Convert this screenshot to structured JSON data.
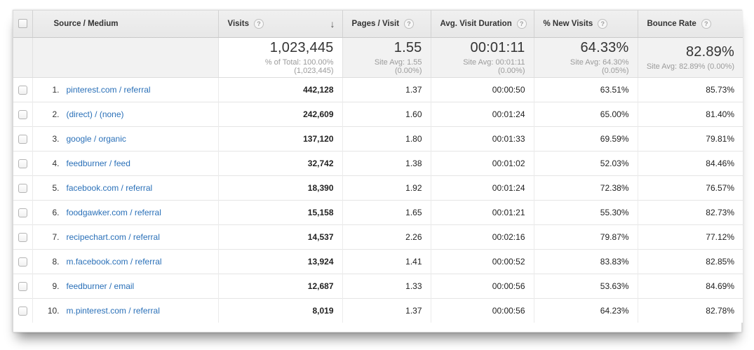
{
  "colors": {
    "link_blue": "#2a70b8",
    "header_bg": "#e9e9e9",
    "summary_bg": "#f2f2f2"
  },
  "columns": {
    "source_medium": "Source / Medium",
    "visits": "Visits",
    "pages_visit": "Pages / Visit",
    "avg_duration": "Avg. Visit Duration",
    "new_visits": "% New Visits",
    "bounce_rate": "Bounce Rate",
    "help_icon": "?",
    "sort_arrow": "↓"
  },
  "summary": {
    "visits": "1,023,445",
    "visits_note": "% of Total: 100.00% (1,023,445)",
    "pages_visit": "1.55",
    "pages_visit_note": "Site Avg: 1.55 (0.00%)",
    "avg_duration": "00:01:11",
    "avg_duration_note": "Site Avg: 00:01:11 (0.00%)",
    "new_visits": "64.33%",
    "new_visits_note": "Site Avg: 64.30% (0.05%)",
    "bounce_rate": "82.89%",
    "bounce_rate_note": "Site Avg: 82.89% (0.00%)"
  },
  "rows": [
    {
      "rank": "1.",
      "source": "pinterest.com / referral",
      "visits": "442,128",
      "pages_visit": "1.37",
      "avg_duration": "00:00:50",
      "new_visits": "63.51%",
      "bounce_rate": "85.73%"
    },
    {
      "rank": "2.",
      "source": "(direct) / (none)",
      "visits": "242,609",
      "pages_visit": "1.60",
      "avg_duration": "00:01:24",
      "new_visits": "65.00%",
      "bounce_rate": "81.40%"
    },
    {
      "rank": "3.",
      "source": "google / organic",
      "visits": "137,120",
      "pages_visit": "1.80",
      "avg_duration": "00:01:33",
      "new_visits": "69.59%",
      "bounce_rate": "79.81%"
    },
    {
      "rank": "4.",
      "source": "feedburner / feed",
      "visits": "32,742",
      "pages_visit": "1.38",
      "avg_duration": "00:01:02",
      "new_visits": "52.03%",
      "bounce_rate": "84.46%"
    },
    {
      "rank": "5.",
      "source": "facebook.com / referral",
      "visits": "18,390",
      "pages_visit": "1.92",
      "avg_duration": "00:01:24",
      "new_visits": "72.38%",
      "bounce_rate": "76.57%"
    },
    {
      "rank": "6.",
      "source": "foodgawker.com / referral",
      "visits": "15,158",
      "pages_visit": "1.65",
      "avg_duration": "00:01:21",
      "new_visits": "55.30%",
      "bounce_rate": "82.73%"
    },
    {
      "rank": "7.",
      "source": "recipechart.com / referral",
      "visits": "14,537",
      "pages_visit": "2.26",
      "avg_duration": "00:02:16",
      "new_visits": "79.87%",
      "bounce_rate": "77.12%"
    },
    {
      "rank": "8.",
      "source": "m.facebook.com / referral",
      "visits": "13,924",
      "pages_visit": "1.41",
      "avg_duration": "00:00:52",
      "new_visits": "83.83%",
      "bounce_rate": "82.85%"
    },
    {
      "rank": "9.",
      "source": "feedburner / email",
      "visits": "12,687",
      "pages_visit": "1.33",
      "avg_duration": "00:00:56",
      "new_visits": "53.63%",
      "bounce_rate": "84.69%"
    },
    {
      "rank": "10.",
      "source": "m.pinterest.com / referral",
      "visits": "8,019",
      "pages_visit": "1.37",
      "avg_duration": "00:00:56",
      "new_visits": "64.23%",
      "bounce_rate": "82.78%"
    }
  ]
}
